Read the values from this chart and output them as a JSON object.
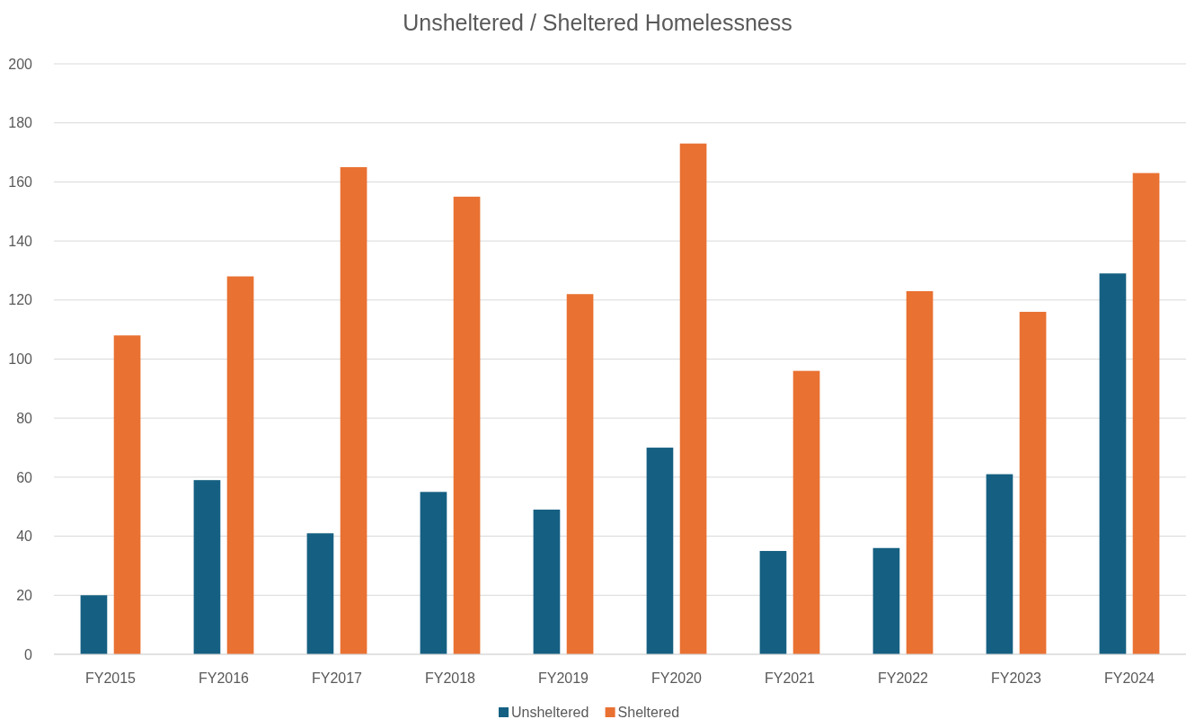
{
  "chart_data": {
    "type": "bar",
    "title": "Unsheltered / Sheltered Homelessness",
    "categories": [
      "FY2015",
      "FY2016",
      "FY2017",
      "FY2018",
      "FY2019",
      "FY2020",
      "FY2021",
      "FY2022",
      "FY2023",
      "FY2024"
    ],
    "series": [
      {
        "name": "Unsheltered",
        "color": "#156082",
        "values": [
          20,
          59,
          41,
          55,
          49,
          70,
          35,
          36,
          61,
          129
        ]
      },
      {
        "name": "Sheltered",
        "color": "#e97132",
        "values": [
          108,
          128,
          165,
          155,
          122,
          173,
          96,
          123,
          116,
          163
        ]
      }
    ],
    "ylim": [
      0,
      200
    ],
    "yticks": [
      0,
      20,
      40,
      60,
      80,
      100,
      120,
      140,
      160,
      180,
      200
    ],
    "grid": "y",
    "legend": "bottom"
  }
}
